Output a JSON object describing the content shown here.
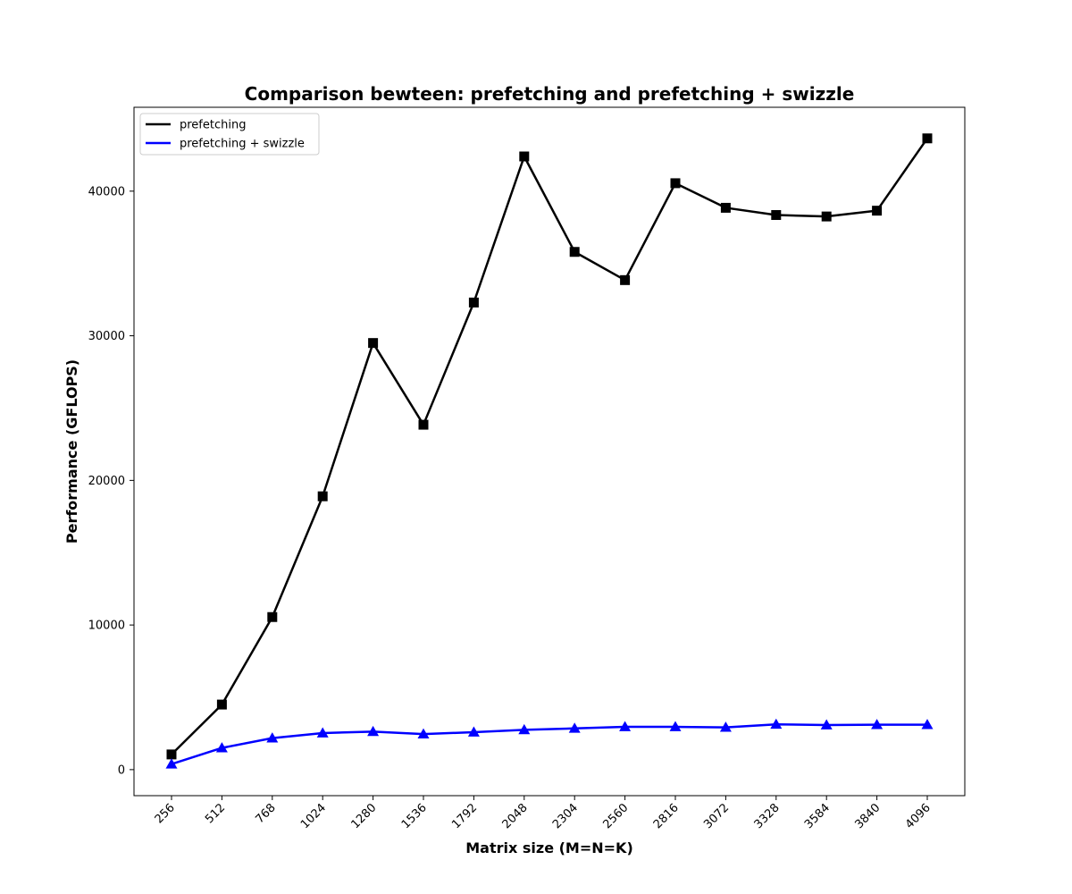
{
  "chart_data": {
    "type": "line",
    "title": "Comparison bewteen: prefetching and prefetching + swizzle",
    "xlabel": "Matrix size (M=N=K)",
    "ylabel": "Performance (GFLOPS)",
    "x": [
      256,
      512,
      768,
      1024,
      1280,
      1536,
      1792,
      2048,
      2304,
      2560,
      2816,
      3072,
      3328,
      3584,
      3840,
      4096
    ],
    "x_tick_labels": [
      "256",
      "512",
      "768",
      "1024",
      "1280",
      "1536",
      "1792",
      "2048",
      "2304",
      "2560",
      "2816",
      "3072",
      "3328",
      "3584",
      "3840",
      "4096"
    ],
    "y_ticks": [
      0,
      10000,
      20000,
      30000,
      40000
    ],
    "y_tick_labels": [
      "0",
      "10000",
      "20000",
      "30000",
      "40000"
    ],
    "ylim": [
      -1800,
      45800
    ],
    "grid": false,
    "legend_position": "top-left",
    "series": [
      {
        "name": "prefetching",
        "color": "#000000",
        "marker": "square",
        "values": [
          1050,
          4500,
          10550,
          18900,
          29500,
          23850,
          32300,
          42400,
          35800,
          33850,
          40550,
          38850,
          38350,
          38250,
          38650,
          43650
        ]
      },
      {
        "name": "prefetching + swizzle",
        "color": "#0000ff",
        "marker": "triangle",
        "values": [
          380,
          1500,
          2180,
          2530,
          2630,
          2460,
          2590,
          2750,
          2850,
          2960,
          2960,
          2920,
          3130,
          3080,
          3110,
          3110
        ]
      }
    ]
  }
}
